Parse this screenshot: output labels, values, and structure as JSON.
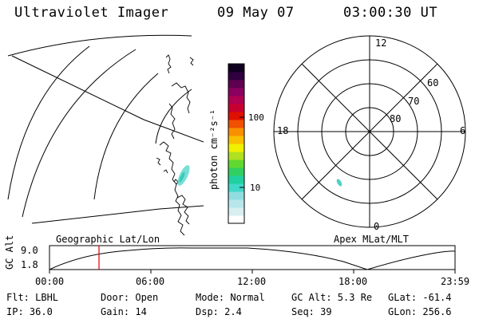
{
  "header": {
    "instrument": "Ultraviolet Imager",
    "date": "09 May 07",
    "time": "03:00:30 UT"
  },
  "colorbar": {
    "unit_label": "photon cm⁻²s⁻¹",
    "ticks": [
      "100",
      "10"
    ],
    "colors": [
      "#ffffff",
      "#d8eef0",
      "#b8e6ea",
      "#90dde0",
      "#40d8c8",
      "#20d0a0",
      "#30d060",
      "#60d830",
      "#b0e020",
      "#f0f000",
      "#f8c000",
      "#f89000",
      "#f05000",
      "#e01000",
      "#c80030",
      "#b00050",
      "#8c0060",
      "#600050",
      "#300040",
      "#100020"
    ]
  },
  "polar_plot": {
    "mlt_labels": [
      "12",
      "6",
      "0",
      "18"
    ],
    "lat_labels": [
      "60",
      "70",
      "80"
    ]
  },
  "coord_labels": {
    "left": "Geographic Lat/Lon",
    "right": "Apex MLat/MLT"
  },
  "timeline": {
    "y_axis_label": "GC Alt",
    "y_ticks": [
      "9.0",
      "1.8"
    ],
    "x_ticks": [
      "00:00",
      "06:00",
      "12:00",
      "18:00",
      "23:59"
    ],
    "marker_color": "#e00000"
  },
  "info": {
    "filter": "Flt: LBHL",
    "ip": "IP: 36.0",
    "door": "Door: Open",
    "gain": "Gain: 14",
    "mode": "Mode: Normal",
    "dsp": "Dsp:    2.4",
    "gc_alt": "GC Alt: 5.3 Re",
    "seq": "Seq: 39",
    "glat": "GLat: -61.4",
    "glon": "GLon: 256.6"
  }
}
